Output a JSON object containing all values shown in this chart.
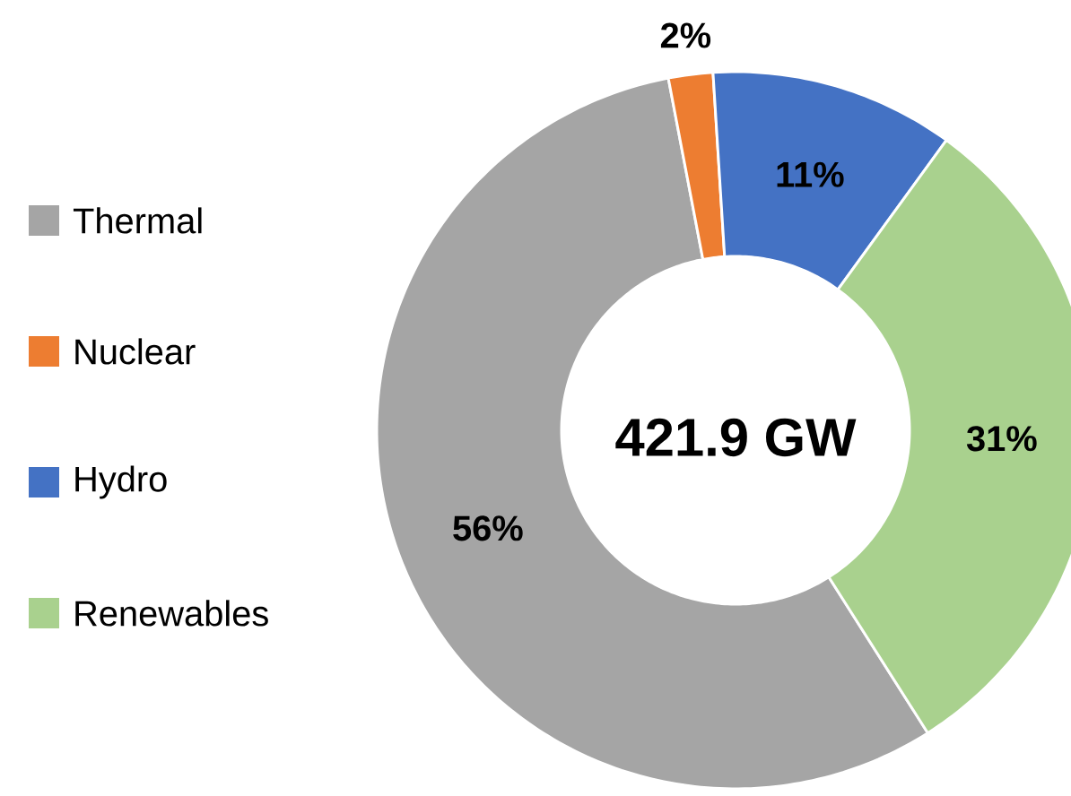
{
  "chart_data": {
    "type": "donut",
    "categories": [
      "Thermal",
      "Nuclear",
      "Hydro",
      "Renewables"
    ],
    "values": [
      56,
      2,
      11,
      31
    ],
    "value_labels": [
      "56%",
      "2%",
      "11%",
      "31%"
    ],
    "colors": [
      "#a5a5a5",
      "#ed7d31",
      "#4472c4",
      "#a9d18e"
    ],
    "annotations": [
      "421.9 GW"
    ],
    "legend": "left"
  }
}
